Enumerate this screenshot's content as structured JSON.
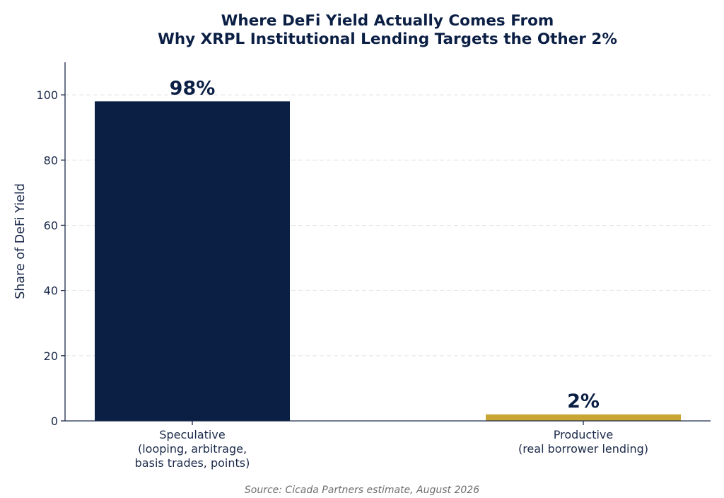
{
  "chart_data": {
    "type": "bar",
    "title": [
      "Where DeFi Yield Actually Comes From",
      "Why XRPL Institutional Lending Targets the Other 2%"
    ],
    "xlabel": "",
    "ylabel": "Share of DeFi Yield",
    "ylim": [
      0,
      110
    ],
    "yticks": [
      0,
      20,
      40,
      60,
      80,
      100
    ],
    "grid": "y-dashed",
    "categories": [
      [
        "Speculative",
        "(looping, arbitrage,",
        "basis trades, points)"
      ],
      [
        "Productive",
        "(real borrower lending)"
      ]
    ],
    "values": [
      98,
      2
    ],
    "data_labels": [
      "98%",
      "2%"
    ],
    "colors": [
      "#0b1f45",
      "#c9a634"
    ],
    "source": "Source: Cicada Partners estimate, August 2026"
  }
}
